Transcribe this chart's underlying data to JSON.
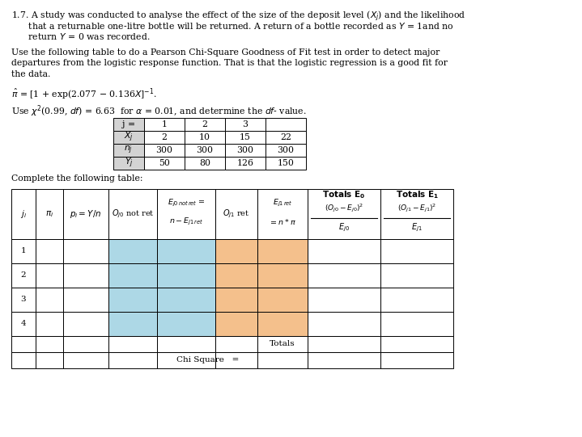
{
  "bg_color": "#ffffff",
  "blue_color": "#ADD8E6",
  "orange_color": "#F4C08C",
  "text_lines": [
    "1.7. A study was conducted to analyse the effect of the size of the deposit level ($X_j$) and the likelihood",
    "      that a returnable one-litre bottle will be returned. A return of a bottle recorded as $Y$ = 1and no",
    "      return $Y$ = 0 was recorded.",
    "",
    "Use the following table to do a Pearson Chi-Square Goodness of Fit test in order to detect major",
    "departures from the logistic response function. That is that the logistic regression is a good fit for",
    "the data.",
    "",
    "$\\hat{\\pi}$ = [1 + exp(2.077 $-$ 0.136$X$]$^{-1}$.",
    "",
    "Use $\\chi^2$(0.99, $df$) = 6.63  for $\\alpha$ = 0.01, and determine the $df$- value."
  ],
  "top_table_rows": [
    [
      "j =",
      "1",
      "2",
      "3",
      ""
    ],
    [
      "$X_j$",
      "2",
      "10",
      "15",
      "22"
    ],
    [
      "$n_j$",
      "300",
      "300",
      "300",
      "300"
    ],
    [
      "$Y_j$",
      "50",
      "80",
      "126",
      "150"
    ]
  ],
  "complete_label": "Complete the following table:",
  "data_row_labels": [
    "1",
    "2",
    "3",
    "4"
  ],
  "totals_label": "Totals",
  "chi_label": "Chi Square   ="
}
